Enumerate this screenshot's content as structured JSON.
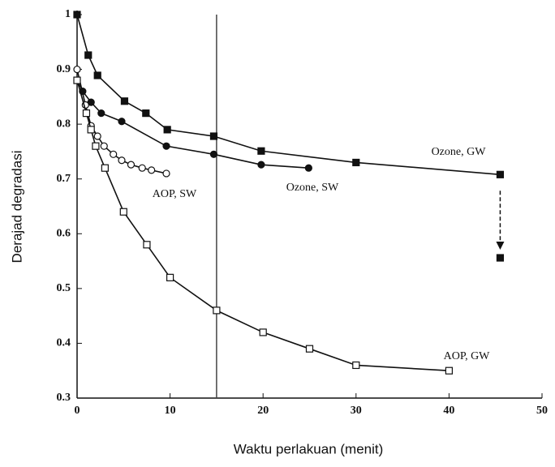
{
  "chart_data": {
    "type": "line",
    "x_label": "Waktu perlakuan (menit)",
    "y_label": "Derajad degradasi",
    "xlim": [
      0,
      50
    ],
    "xticks": [
      0,
      10,
      20,
      30,
      40,
      50
    ],
    "ylim": [
      0.3,
      1
    ],
    "yticks": [
      0.3,
      0.4,
      0.5,
      0.6,
      0.7,
      0.8,
      0.9,
      1
    ],
    "vline": 15,
    "series": [
      {
        "name": "Ozone, GW",
        "color": "#111111",
        "marker": "filled-square",
        "x": [
          0,
          1.2,
          2.2,
          5.1,
          7.4,
          9.7,
          14.7,
          19.8,
          30,
          45.5
        ],
        "values": [
          1,
          0.926,
          0.889,
          0.842,
          0.82,
          0.79,
          0.778,
          0.751,
          0.73,
          0.708
        ]
      },
      {
        "name": "Ozone, SW",
        "color": "#111111",
        "marker": "filled-circle",
        "x": [
          0,
          0.6,
          1.5,
          2.6,
          4.8,
          9.6,
          14.7,
          19.8,
          24.9
        ],
        "values": [
          0.88,
          0.86,
          0.84,
          0.82,
          0.805,
          0.76,
          0.745,
          0.726,
          0.72
        ]
      },
      {
        "name": "AOP, SW",
        "color": "#111111",
        "marker": "open-circle",
        "x": [
          0,
          0.9,
          1.5,
          2.2,
          2.9,
          3.9,
          4.8,
          5.8,
          7,
          8,
          9.6
        ],
        "values": [
          0.9,
          0.835,
          0.797,
          0.778,
          0.76,
          0.745,
          0.734,
          0.726,
          0.72,
          0.716,
          0.71
        ]
      },
      {
        "name": "AOP, GW",
        "color": "#111111",
        "marker": "open-square",
        "x": [
          0,
          1,
          1.5,
          2,
          3,
          5,
          7.5,
          10,
          15,
          20,
          25,
          30,
          40
        ],
        "values": [
          0.88,
          0.82,
          0.79,
          0.76,
          0.72,
          0.64,
          0.58,
          0.52,
          0.46,
          0.42,
          0.39,
          0.36,
          0.35
        ]
      }
    ],
    "arrow_point": {
      "series": 0,
      "x": 45.5,
      "y": 0.556
    }
  }
}
